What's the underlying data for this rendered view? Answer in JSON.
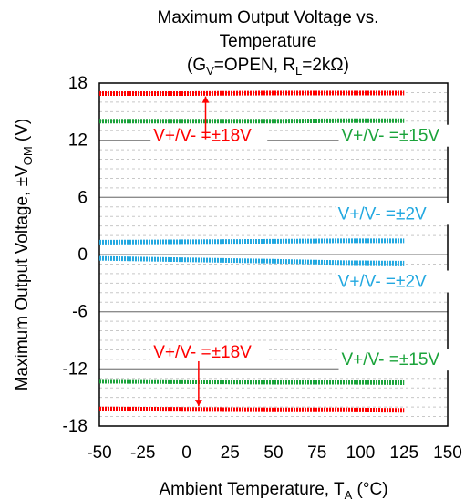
{
  "chart_data": {
    "type": "line",
    "title_lines": [
      "Maximum Output Voltage vs.",
      "Temperature",
      "(G",
      "V",
      "=OPEN, R",
      "L",
      "=2kΩ)"
    ],
    "xlabel_parts": [
      "Ambient Temperature, T",
      "A",
      " (°C)"
    ],
    "ylabel_parts": [
      "Maximum Output Voltage, ±V",
      "OM",
      " (V)"
    ],
    "xlim": [
      -50,
      150
    ],
    "ylim": [
      -18,
      18
    ],
    "xticks": [
      -50,
      -25,
      0,
      25,
      50,
      75,
      100,
      125,
      150
    ],
    "yticks": [
      18,
      12,
      6,
      0,
      -6,
      -12,
      -18
    ],
    "grid": true,
    "colors": {
      "red": "#ff0000",
      "green": "#1aa33a",
      "blue": "#22a8e0",
      "grid": "#c8c8c8",
      "major_grid": "#8c8c8c"
    },
    "series": [
      {
        "name": "V+/V- =±18V",
        "color": "#ff0000",
        "x": [
          -50,
          0,
          50,
          90,
          125
        ],
        "y": [
          16.9,
          16.9,
          16.95,
          16.95,
          16.95
        ]
      },
      {
        "name": "V+/V- =±15V",
        "color": "#1aa33a",
        "x": [
          -50,
          0,
          50,
          90,
          125
        ],
        "y": [
          14.0,
          14.0,
          14.0,
          14.05,
          14.05
        ]
      },
      {
        "name": "V+/V- =±2V",
        "color": "#22a8e0",
        "x": [
          -50,
          0,
          50,
          90,
          125
        ],
        "y": [
          1.3,
          1.35,
          1.4,
          1.45,
          1.45
        ]
      },
      {
        "name": "V+/V- =±2V",
        "color": "#22a8e0",
        "x": [
          -50,
          0,
          50,
          90,
          125
        ],
        "y": [
          -0.4,
          -0.55,
          -0.7,
          -0.85,
          -0.9
        ]
      },
      {
        "name": "V+/V- =±15V",
        "color": "#1aa33a",
        "x": [
          -50,
          0,
          50,
          90,
          125
        ],
        "y": [
          -13.3,
          -13.35,
          -13.4,
          -13.4,
          -13.45
        ]
      },
      {
        "name": "V+/V- =±18V",
        "color": "#ff0000",
        "x": [
          -50,
          0,
          50,
          90,
          125
        ],
        "y": [
          -16.2,
          -16.25,
          -16.3,
          -16.3,
          -16.35
        ]
      }
    ],
    "annotations": [
      {
        "text": "V+/V- =±18V",
        "color": "#ff0000",
        "x": -19,
        "y": 11.9
      },
      {
        "text": "V+/V- =±15V",
        "color": "#1aa33a",
        "x": 89,
        "y": 11.9
      },
      {
        "text": "V+/V- =±2V",
        "color": "#22a8e0",
        "x": 87,
        "y": 3.7
      },
      {
        "text": "V+/V- =±2V",
        "color": "#22a8e0",
        "x": 87,
        "y": -3.4
      },
      {
        "text": "V+/V- =±18V",
        "color": "#ff0000",
        "x": -19,
        "y": -10.8
      },
      {
        "text": "V+/V- =±15V",
        "color": "#1aa33a",
        "x": 89,
        "y": -11.6
      }
    ]
  }
}
